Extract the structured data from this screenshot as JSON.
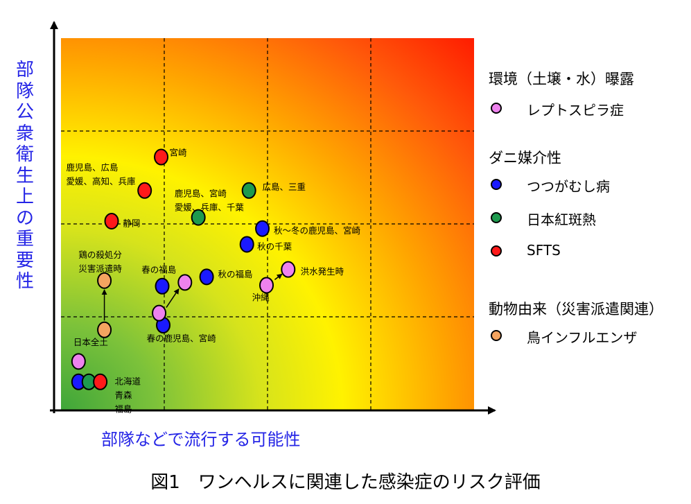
{
  "chart_data": {
    "type": "scatter",
    "title": "",
    "ylabel": "部隊公衆衛生上の重要性",
    "xlabel": "部隊などで流行する可能性",
    "xlim": [
      0,
      4
    ],
    "ylim": [
      0,
      4
    ],
    "grid": true,
    "legend_position": "right",
    "colors": {
      "レプトスピラ症": "#ee82ee",
      "つつがむし病": "#1a1aff",
      "日本紅斑熱": "#1e9a4e",
      "SFTS": "#ff1a1a",
      "鳥インフルエンザ": "#f4a460"
    },
    "legend": [
      {
        "heading": "環境（土壌・水）曝露",
        "items": [
          {
            "label": "レプトスピラ症",
            "series": "レプトスピラ症"
          }
        ]
      },
      {
        "heading": "ダニ媒介性",
        "items": [
          {
            "label": "つつがむし病",
            "series": "つつがむし病"
          },
          {
            "label": "日本紅斑熱",
            "series": "日本紅斑熱"
          },
          {
            "label": "SFTS",
            "series": "SFTS"
          }
        ]
      },
      {
        "heading": "動物由来（災害派遣関連）",
        "items": [
          {
            "label": "鳥インフルエンザ",
            "series": "鳥インフルエンザ"
          }
        ]
      }
    ],
    "points": [
      {
        "series": "SFTS",
        "x": 0.97,
        "y": 2.72
      },
      {
        "series": "SFTS",
        "x": 0.81,
        "y": 2.36
      },
      {
        "series": "SFTS",
        "x": 0.49,
        "y": 2.03
      },
      {
        "series": "日本紅斑熱",
        "x": 1.82,
        "y": 2.36
      },
      {
        "series": "日本紅斑熱",
        "x": 1.33,
        "y": 2.07
      },
      {
        "series": "つつがむし病",
        "x": 1.95,
        "y": 1.95
      },
      {
        "series": "つつがむし病",
        "x": 1.8,
        "y": 1.78
      },
      {
        "series": "つつがむし病",
        "x": 1.41,
        "y": 1.43
      },
      {
        "series": "つつがむし病",
        "x": 0.98,
        "y": 1.33
      },
      {
        "series": "つつがむし病",
        "x": 0.99,
        "y": 0.91
      },
      {
        "series": "レプトスピラ症",
        "x": 2.2,
        "y": 1.51
      },
      {
        "series": "レプトスピラ症",
        "x": 1.99,
        "y": 1.34
      },
      {
        "series": "レプトスピラ症",
        "x": 1.2,
        "y": 1.37
      },
      {
        "series": "レプトスピラ症",
        "x": 0.95,
        "y": 1.04
      },
      {
        "series": "鳥インフルエンザ",
        "x": 0.42,
        "y": 1.39
      },
      {
        "series": "鳥インフルエンザ",
        "x": 0.42,
        "y": 0.86
      },
      {
        "series": "レプトスピラ症",
        "x": 0.17,
        "y": 0.52
      },
      {
        "series": "つつがむし病",
        "x": 0.17,
        "y": 0.3
      },
      {
        "series": "日本紅斑熱",
        "x": 0.27,
        "y": 0.3
      },
      {
        "series": "SFTS",
        "x": 0.38,
        "y": 0.3
      }
    ],
    "arrows": [
      {
        "from": [
          0.42,
          0.96
        ],
        "to": [
          0.42,
          1.29
        ]
      },
      {
        "from": [
          1.02,
          1.1
        ],
        "to": [
          1.14,
          1.3
        ]
      },
      {
        "from": [
          2.07,
          1.4
        ],
        "to": [
          2.14,
          1.46
        ]
      }
    ],
    "annotations": [
      {
        "text": "宮崎",
        "x": 1.05,
        "y": 2.76,
        "anchor": "start"
      },
      {
        "text": "鹿児島、広島",
        "x": 0.05,
        "y": 2.6,
        "anchor": "start"
      },
      {
        "text": "愛媛、高知、兵庫",
        "x": 0.05,
        "y": 2.45,
        "anchor": "start"
      },
      {
        "text": "静岡",
        "x": 0.6,
        "y": 2.0,
        "anchor": "start"
      },
      {
        "text": "鹿児島、宮崎",
        "x": 1.1,
        "y": 2.32,
        "anchor": "start"
      },
      {
        "text": "愛媛、兵庫、千葉",
        "x": 1.1,
        "y": 2.17,
        "anchor": "start"
      },
      {
        "text": "広島、三重",
        "x": 1.95,
        "y": 2.39,
        "anchor": "start"
      },
      {
        "text": "秋～冬の鹿児島、宮崎",
        "x": 2.06,
        "y": 1.92,
        "anchor": "start"
      },
      {
        "text": "秋の千葉",
        "x": 1.9,
        "y": 1.75,
        "anchor": "start"
      },
      {
        "text": "春の福島",
        "x": 0.78,
        "y": 1.5,
        "anchor": "start"
      },
      {
        "text": "秋の福島",
        "x": 1.52,
        "y": 1.45,
        "anchor": "start"
      },
      {
        "text": "洪水発生時",
        "x": 2.32,
        "y": 1.48,
        "anchor": "start"
      },
      {
        "text": "沖縄",
        "x": 1.85,
        "y": 1.2,
        "anchor": "start"
      },
      {
        "text": "鶏の殺処分",
        "x": 0.17,
        "y": 1.66,
        "anchor": "start"
      },
      {
        "text": "災害派遣時",
        "x": 0.17,
        "y": 1.51,
        "anchor": "start"
      },
      {
        "text": "春の鹿児島、宮崎",
        "x": 0.83,
        "y": 0.76,
        "anchor": "start"
      },
      {
        "text": "日本全土",
        "x": 0.12,
        "y": 0.72,
        "anchor": "start"
      },
      {
        "text": "北海道",
        "x": 0.52,
        "y": 0.3,
        "anchor": "start"
      },
      {
        "text": "青森",
        "x": 0.52,
        "y": 0.15,
        "anchor": "start"
      },
      {
        "text": "福島",
        "x": 0.52,
        "y": 0.0,
        "anchor": "start"
      }
    ]
  },
  "caption": "図1　ワンヘルスに関連した感染症のリスク評価"
}
